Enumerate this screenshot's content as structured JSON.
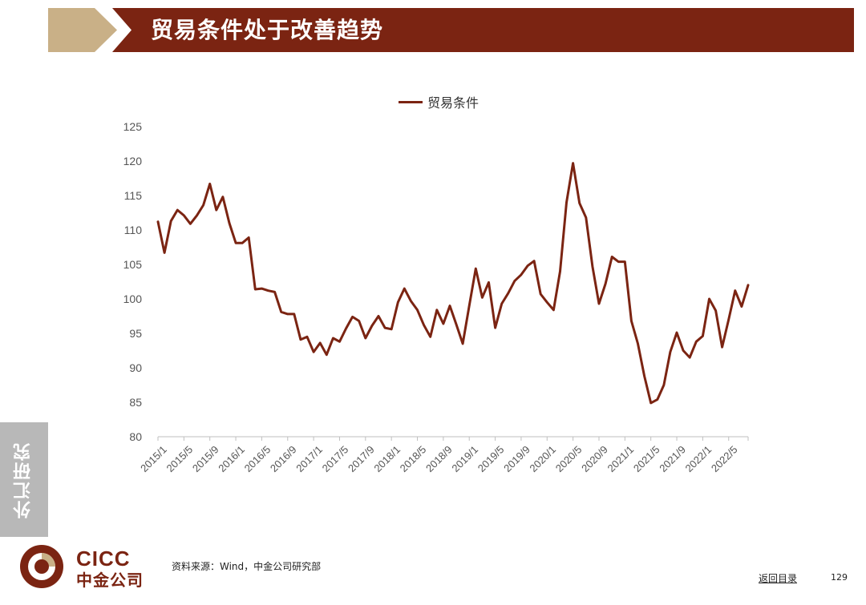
{
  "header": {
    "title": "贸易条件处于改善趋势"
  },
  "side_tab": {
    "label": "外汇研究"
  },
  "logo": {
    "en": "CICC",
    "cn": "中金公司"
  },
  "footer": {
    "source": "资料来源：Wind，中金公司研究部",
    "toc_link": "返回目录",
    "page_number": "129"
  },
  "colors": {
    "accent": "#7b2412",
    "chevron": "#c9b087",
    "side_tab": "#b8b8b8"
  },
  "chart_data": {
    "type": "line",
    "title": "",
    "xlabel": "",
    "ylabel": "",
    "ylim": [
      80,
      125
    ],
    "yticks": [
      80,
      85,
      90,
      95,
      100,
      105,
      110,
      115,
      120,
      125
    ],
    "xtick_labels": [
      "2015/1",
      "2015/5",
      "2015/9",
      "2016/1",
      "2016/5",
      "2016/9",
      "2017/1",
      "2017/5",
      "2017/9",
      "2018/1",
      "2018/5",
      "2018/9",
      "2019/1",
      "2019/5",
      "2019/9",
      "2020/1",
      "2020/5",
      "2020/9",
      "2021/1",
      "2021/5",
      "2021/9",
      "2022/1",
      "2022/5"
    ],
    "legend": "top-center",
    "grid": false,
    "series": [
      {
        "name": "贸易条件",
        "x_start": "2015/1",
        "frequency": "monthly",
        "values": [
          111.2,
          106.7,
          111.3,
          112.9,
          112.1,
          110.9,
          112.1,
          113.6,
          116.7,
          112.9,
          114.8,
          111.0,
          108.1,
          108.1,
          108.9,
          101.4,
          101.5,
          101.2,
          101.0,
          98.1,
          97.8,
          97.8,
          94.1,
          94.5,
          92.3,
          93.6,
          91.9,
          94.3,
          93.8,
          95.7,
          97.4,
          96.8,
          94.3,
          96.1,
          97.5,
          95.8,
          95.6,
          99.5,
          101.5,
          99.7,
          98.4,
          96.2,
          94.5,
          98.4,
          96.4,
          99.0,
          96.3,
          93.5,
          99.0,
          104.4,
          100.2,
          102.4,
          95.8,
          99.3,
          100.8,
          102.6,
          103.5,
          104.8,
          105.5,
          100.7,
          99.5,
          98.4,
          104.0,
          114.0,
          119.7,
          113.9,
          111.8,
          104.7,
          99.3,
          102.2,
          106.1,
          105.4,
          105.4,
          96.8,
          93.5,
          88.8,
          84.9,
          85.4,
          87.5,
          92.3,
          95.1,
          92.5,
          91.5,
          93.8,
          94.6,
          100.0,
          98.3,
          93.0,
          97.0,
          101.2,
          98.9,
          102.0
        ]
      }
    ]
  }
}
